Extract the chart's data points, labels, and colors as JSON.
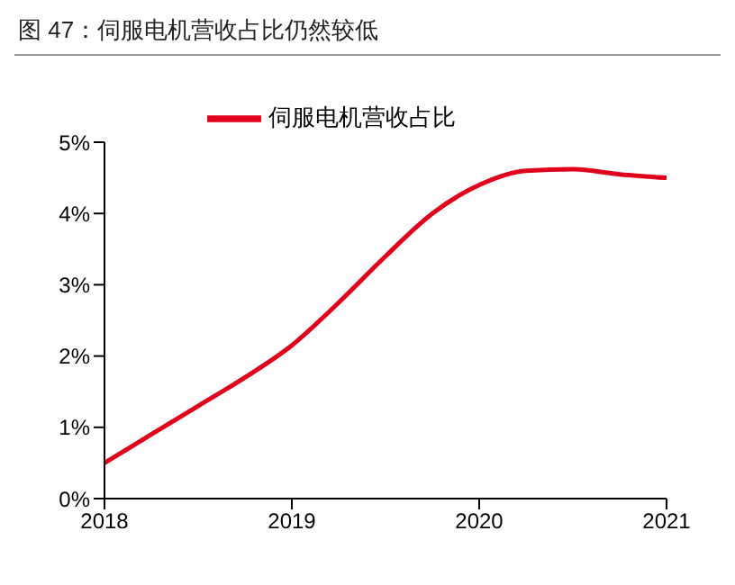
{
  "chart_data": {
    "type": "line",
    "title": "图 47：伺服电机营收占比仍然较低",
    "x": [
      2018,
      2018.25,
      2018.5,
      2018.75,
      2019,
      2019.25,
      2019.5,
      2019.75,
      2020,
      2020.25,
      2020.5,
      2020.75,
      2021
    ],
    "series": [
      {
        "name": "伺服电机营收占比",
        "color": "#e0001b",
        "values": [
          0.5,
          0.9,
          1.3,
          1.7,
          2.15,
          2.75,
          3.4,
          4.0,
          4.4,
          4.6,
          4.62,
          4.55,
          4.5
        ]
      }
    ],
    "xlim": [
      2018,
      2021
    ],
    "xticks": [
      2018,
      2019,
      2020,
      2021
    ],
    "ylim": [
      0,
      5
    ],
    "yticks": [
      {
        "value": 0,
        "label": "0%"
      },
      {
        "value": 1,
        "label": "1%"
      },
      {
        "value": 2,
        "label": "2%"
      },
      {
        "value": 3,
        "label": "3%"
      },
      {
        "value": 4,
        "label": "4%"
      },
      {
        "value": 5,
        "label": "5%"
      }
    ],
    "legend": "top",
    "grid": false,
    "marker": "none",
    "line_style": "solid"
  }
}
